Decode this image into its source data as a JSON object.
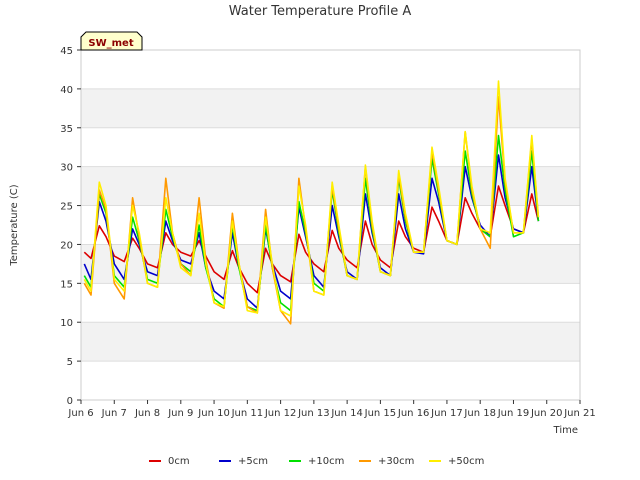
{
  "chart_data": {
    "type": "line",
    "title": "Water Temperature Profile A",
    "xlabel": "Time",
    "ylabel": "Temperature (C)",
    "site_label": "SW_met",
    "xlim": [
      6,
      21
    ],
    "ylim": [
      0,
      45
    ],
    "y_ticks": [
      0,
      5,
      10,
      15,
      20,
      25,
      30,
      35,
      40,
      45
    ],
    "x_ticks": [
      {
        "day": 6,
        "label": "Jun 6"
      },
      {
        "day": 7,
        "label": "Jun 7"
      },
      {
        "day": 8,
        "label": "Jun 8"
      },
      {
        "day": 9,
        "label": "Jun 9"
      },
      {
        "day": 10,
        "label": "Jun 10"
      },
      {
        "day": 11,
        "label": "Jun 11"
      },
      {
        "day": 12,
        "label": "Jun 12"
      },
      {
        "day": 13,
        "label": "Jun 13"
      },
      {
        "day": 14,
        "label": "Jun 14"
      },
      {
        "day": 15,
        "label": "Jun 15"
      },
      {
        "day": 16,
        "label": "Jun 16"
      },
      {
        "day": 17,
        "label": "Jun 17"
      },
      {
        "day": 18,
        "label": "Jun 18"
      },
      {
        "day": 19,
        "label": "Jun 19"
      },
      {
        "day": 20,
        "label": "Jun 20"
      },
      {
        "day": 21,
        "label": "Jun 21"
      }
    ],
    "grid": true,
    "legend_position": "bottom",
    "series": [
      {
        "name": "0cm",
        "color": "#dd0000",
        "x": [
          6.1,
          6.3,
          6.55,
          6.75,
          7.0,
          7.3,
          7.55,
          7.75,
          8.0,
          8.3,
          8.55,
          8.75,
          9.0,
          9.3,
          9.55,
          9.75,
          10.0,
          10.3,
          10.55,
          10.75,
          11.0,
          11.3,
          11.55,
          11.75,
          12.0,
          12.3,
          12.55,
          12.75,
          13.0,
          13.3,
          13.55,
          13.75,
          14.0,
          14.3,
          14.55,
          14.75,
          15.0,
          15.3,
          15.55,
          15.75,
          16.0,
          16.3,
          16.55,
          16.75,
          17.0,
          17.3,
          17.55,
          17.75,
          18.0,
          18.3,
          18.55,
          18.75,
          19.0,
          19.3,
          19.55,
          19.75
        ],
        "y": [
          19.0,
          18.2,
          22.4,
          21.0,
          18.5,
          17.8,
          20.8,
          19.5,
          17.5,
          17.0,
          21.5,
          20.0,
          19.0,
          18.5,
          20.5,
          18.5,
          16.5,
          15.5,
          19.2,
          17.0,
          15.0,
          13.8,
          19.5,
          17.5,
          16.0,
          15.2,
          21.3,
          19.0,
          17.5,
          16.5,
          21.8,
          19.5,
          18.0,
          17.0,
          23.0,
          20.0,
          18.0,
          17.0,
          23.0,
          21.0,
          19.5,
          19.0,
          24.8,
          23.0,
          20.5,
          20.0,
          26.0,
          24.0,
          22.0,
          21.0,
          27.5,
          25.0,
          22.0,
          21.5,
          26.5,
          23.0
        ]
      },
      {
        "name": "+5cm",
        "color": "#0000cc",
        "x": [
          6.1,
          6.3,
          6.55,
          6.75,
          7.0,
          7.3,
          7.55,
          7.75,
          8.0,
          8.3,
          8.55,
          8.75,
          9.0,
          9.3,
          9.55,
          9.75,
          10.0,
          10.3,
          10.55,
          10.75,
          11.0,
          11.3,
          11.55,
          11.75,
          12.0,
          12.3,
          12.55,
          12.75,
          13.0,
          13.3,
          13.55,
          13.75,
          14.0,
          14.3,
          14.55,
          14.75,
          15.0,
          15.3,
          15.55,
          15.75,
          16.0,
          16.3,
          16.55,
          16.75,
          17.0,
          17.3,
          17.55,
          17.75,
          18.0,
          18.3,
          18.55,
          18.75,
          19.0,
          19.3,
          19.55,
          19.75
        ],
        "y": [
          17.5,
          15.5,
          25.5,
          23.0,
          17.5,
          15.5,
          22.0,
          20.0,
          16.5,
          16.0,
          23.0,
          20.5,
          18.0,
          17.5,
          21.5,
          17.0,
          14.0,
          13.0,
          21.5,
          17.0,
          13.0,
          11.8,
          22.0,
          17.5,
          14.0,
          13.0,
          24.8,
          21.0,
          16.0,
          14.5,
          25.0,
          21.0,
          16.5,
          15.5,
          26.5,
          21.5,
          17.0,
          16.0,
          26.5,
          22.0,
          19.0,
          18.8,
          28.5,
          25.5,
          20.5,
          20.0,
          30.0,
          26.0,
          22.5,
          21.0,
          31.5,
          26.0,
          22.0,
          21.5,
          30.0,
          23.0
        ]
      },
      {
        "name": "+10cm",
        "color": "#00e000",
        "x": [
          6.1,
          6.3,
          6.55,
          6.75,
          7.0,
          7.3,
          7.55,
          7.75,
          8.0,
          8.3,
          8.55,
          8.75,
          9.0,
          9.3,
          9.55,
          9.75,
          10.0,
          10.3,
          10.55,
          10.75,
          11.0,
          11.3,
          11.55,
          11.75,
          12.0,
          12.3,
          12.55,
          12.75,
          13.0,
          13.3,
          13.55,
          13.75,
          14.0,
          14.3,
          14.55,
          14.75,
          15.0,
          15.3,
          15.55,
          15.75,
          16.0,
          16.3,
          16.55,
          16.75,
          17.0,
          17.3,
          17.55,
          17.75,
          18.0,
          18.3,
          18.55,
          18.75,
          19.0,
          19.3,
          19.55,
          19.75
        ],
        "y": [
          16.0,
          14.5,
          26.5,
          24.0,
          16.0,
          14.5,
          23.5,
          20.5,
          15.5,
          15.0,
          24.5,
          21.0,
          17.5,
          16.5,
          22.5,
          17.0,
          13.0,
          12.0,
          22.5,
          17.0,
          12.0,
          11.5,
          22.5,
          17.0,
          12.5,
          11.5,
          25.5,
          21.5,
          15.0,
          14.0,
          27.0,
          21.5,
          16.0,
          15.5,
          28.5,
          22.0,
          16.5,
          16.0,
          28.5,
          23.0,
          19.0,
          19.0,
          31.0,
          26.5,
          20.5,
          20.0,
          32.0,
          26.5,
          22.0,
          21.0,
          34.0,
          27.0,
          21.0,
          21.5,
          32.0,
          23.0
        ]
      },
      {
        "name": "+30cm",
        "color": "#ff9900",
        "x": [
          6.1,
          6.3,
          6.55,
          6.75,
          7.0,
          7.3,
          7.55,
          7.75,
          8.0,
          8.3,
          8.55,
          8.75,
          9.0,
          9.3,
          9.55,
          9.75,
          10.0,
          10.3,
          10.55,
          10.75,
          11.0,
          11.3,
          11.55,
          11.75,
          12.0,
          12.3,
          12.55,
          12.75,
          13.0,
          13.3,
          13.55,
          13.75,
          14.0,
          14.3,
          14.55,
          14.75,
          15.0,
          15.3,
          15.55,
          15.75,
          16.0,
          16.3,
          16.55,
          16.75,
          17.0,
          17.3,
          17.55,
          17.75,
          18.0,
          18.3,
          18.55,
          18.75,
          19.0,
          19.3,
          19.55,
          19.75
        ],
        "y": [
          15.0,
          13.5,
          27.0,
          24.5,
          15.0,
          13.0,
          26.0,
          21.0,
          15.0,
          14.5,
          28.5,
          21.5,
          17.5,
          16.0,
          26.0,
          18.0,
          12.5,
          11.8,
          24.0,
          17.5,
          12.0,
          11.2,
          24.5,
          17.0,
          11.5,
          9.8,
          28.5,
          22.0,
          14.0,
          13.5,
          27.5,
          22.0,
          16.0,
          15.5,
          30.0,
          22.5,
          16.5,
          16.0,
          29.0,
          23.5,
          19.0,
          19.0,
          32.0,
          27.0,
          20.5,
          20.0,
          34.5,
          27.0,
          22.0,
          19.5,
          39.0,
          28.0,
          21.5,
          21.5,
          33.5,
          23.5
        ]
      },
      {
        "name": "+50cm",
        "color": "#ffee00",
        "x": [
          6.1,
          6.3,
          6.55,
          6.75,
          7.0,
          7.3,
          7.55,
          7.75,
          8.0,
          8.3,
          8.55,
          8.75,
          9.0,
          9.3,
          9.55,
          9.75,
          10.0,
          10.3,
          10.55,
          10.75,
          11.0,
          11.3,
          11.55,
          11.75,
          12.0,
          12.3,
          12.55,
          12.75,
          13.0,
          13.3,
          13.55,
          13.75,
          14.0,
          14.3,
          14.55,
          14.75,
          15.0,
          15.3,
          15.55,
          15.75,
          16.0,
          16.3,
          16.55,
          16.75,
          17.0,
          17.3,
          17.55,
          17.75,
          18.0,
          18.3,
          18.55,
          18.75,
          19.0,
          19.3,
          19.55,
          19.75
        ],
        "y": [
          15.5,
          14.0,
          28.0,
          25.0,
          15.5,
          14.0,
          25.0,
          21.5,
          15.0,
          14.5,
          26.0,
          21.5,
          17.0,
          16.0,
          24.0,
          17.5,
          12.5,
          12.0,
          23.0,
          17.5,
          11.5,
          11.2,
          23.5,
          17.5,
          11.5,
          10.8,
          27.5,
          22.5,
          14.0,
          13.5,
          28.0,
          22.5,
          16.0,
          15.5,
          30.2,
          23.0,
          16.5,
          16.0,
          29.5,
          24.0,
          19.0,
          19.0,
          32.5,
          27.5,
          20.5,
          20.0,
          34.5,
          27.5,
          22.0,
          21.5,
          41.0,
          28.5,
          21.5,
          21.5,
          34.0,
          23.5
        ]
      }
    ]
  }
}
